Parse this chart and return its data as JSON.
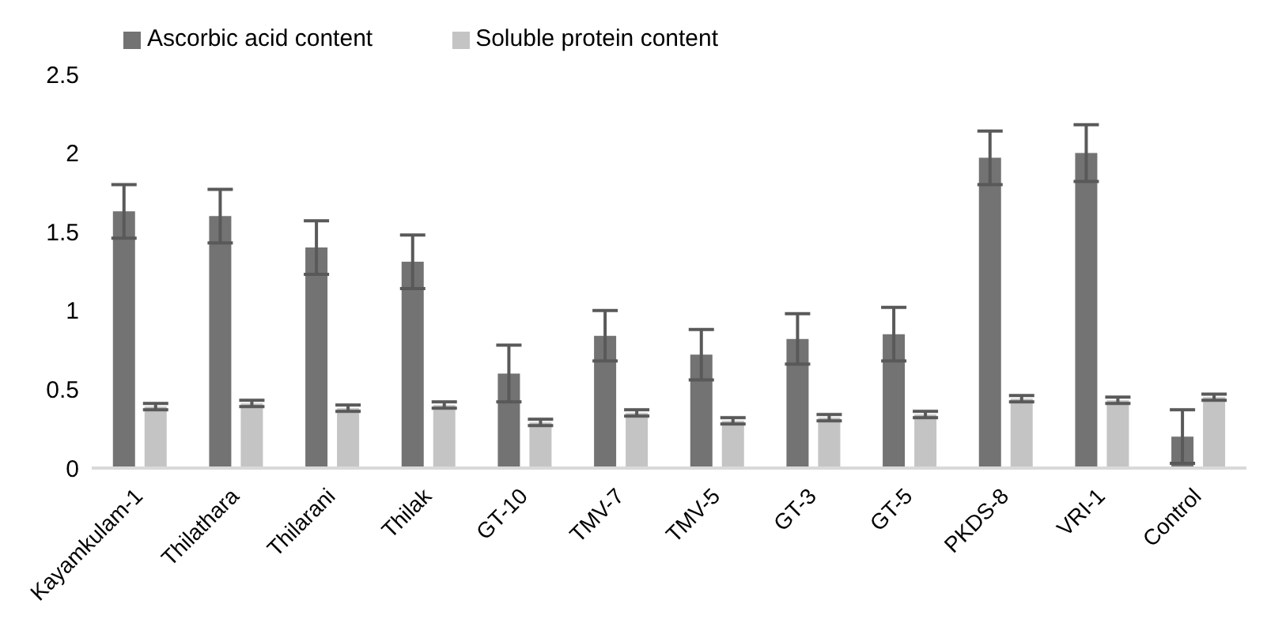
{
  "chart_data": {
    "type": "bar",
    "categories": [
      "Kayamkulam-1",
      "Thilathara",
      "Thilarani",
      "Thilak",
      "GT-10",
      "TMV-7",
      "TMV-5",
      "GT-3",
      "GT-5",
      "PKDS-8",
      "VRI-1",
      "Control"
    ],
    "series": [
      {
        "name": "Ascorbic acid content",
        "color": "#737373",
        "values": [
          1.63,
          1.6,
          1.4,
          1.31,
          0.6,
          0.84,
          0.72,
          0.82,
          0.85,
          1.97,
          2.0,
          0.2
        ],
        "errors": [
          0.17,
          0.17,
          0.17,
          0.17,
          0.18,
          0.16,
          0.16,
          0.16,
          0.17,
          0.17,
          0.18,
          0.17
        ]
      },
      {
        "name": "Soluble protein content",
        "color": "#c4c4c4",
        "values": [
          0.39,
          0.41,
          0.38,
          0.4,
          0.29,
          0.35,
          0.3,
          0.32,
          0.34,
          0.44,
          0.43,
          0.45
        ],
        "errors": [
          0.02,
          0.02,
          0.02,
          0.02,
          0.02,
          0.02,
          0.02,
          0.02,
          0.02,
          0.02,
          0.02,
          0.02
        ]
      }
    ],
    "ylim": [
      0,
      2.5
    ],
    "yticks": [
      0,
      0.5,
      1,
      1.5,
      2,
      2.5
    ],
    "grid": false,
    "legend": "top left"
  }
}
